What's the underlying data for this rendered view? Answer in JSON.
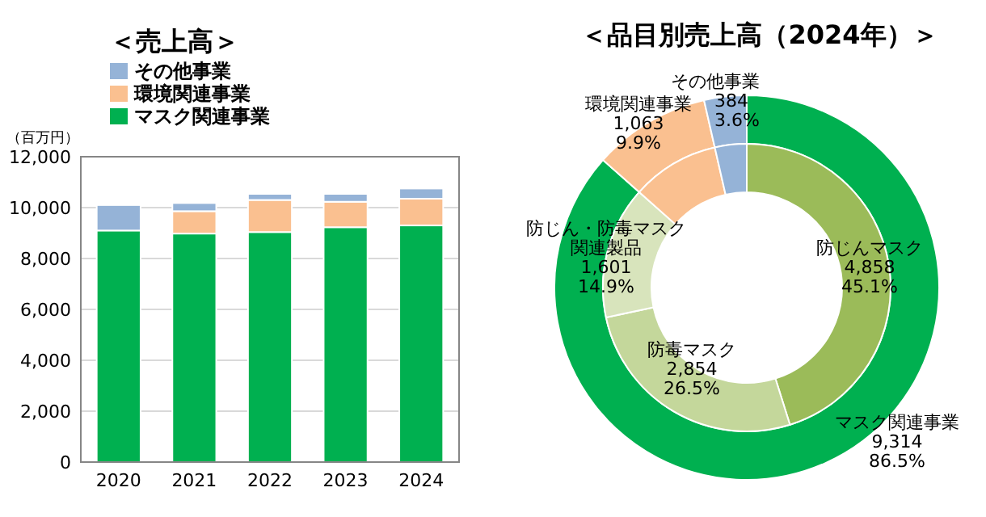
{
  "chart_data": [
    {
      "type": "bar",
      "title": "＜売上高＞",
      "ylabel": "（百万円）",
      "stacked": true,
      "categories": [
        "2020",
        "2021",
        "2022",
        "2023",
        "2024"
      ],
      "series": [
        {
          "name": "マスク関連事業",
          "color": "#00b050",
          "values": [
            9100,
            8980,
            9040,
            9230,
            9300
          ]
        },
        {
          "name": "環境関連事業",
          "color": "#fac090",
          "values": [
            0,
            880,
            1260,
            1000,
            1050
          ]
        },
        {
          "name": "その他事業",
          "color": "#95b3d7",
          "values": [
            1000,
            320,
            240,
            310,
            400
          ]
        }
      ],
      "ylim": [
        0,
        12000
      ],
      "yticks": [
        {
          "value": 0,
          "label": "0"
        },
        {
          "value": 2000,
          "label": "2,000"
        },
        {
          "value": 4000,
          "label": "4,000"
        },
        {
          "value": 6000,
          "label": "6,000"
        },
        {
          "value": 8000,
          "label": "8,000"
        },
        {
          "value": 10000,
          "label": "10,000"
        },
        {
          "value": 12000,
          "label": "12,000"
        }
      ],
      "grid": "y",
      "legend": "top"
    },
    {
      "type": "donut",
      "title": "＜品目別売上高（2024年）＞",
      "categories": [
        "マスク関連事業",
        "環境関連事業",
        "その他事業"
      ],
      "values": [
        9314,
        1063,
        384
      ],
      "colors": [
        "#00b050",
        "#fac090",
        "#95b3d7"
      ],
      "value_labels": [
        "9,314\n86.5%",
        "1,063\n9.9%",
        "384\n3.6%"
      ]
    },
    {
      "type": "donut",
      "categories": [
        "防じんマスク",
        "防毒マスク",
        "防じん・防毒マスク関連製品",
        null,
        null
      ],
      "values": [
        4858,
        2854,
        1601,
        1063,
        384
      ],
      "colors": [
        "#9bbb59",
        "#c4d79b",
        "#d8e4bc",
        "#fac090",
        "#95b3d7"
      ],
      "value_labels": [
        "4,858\n45.1%",
        "2,854\n26.5%",
        "1,601\n14.9%",
        null,
        null
      ]
    }
  ]
}
